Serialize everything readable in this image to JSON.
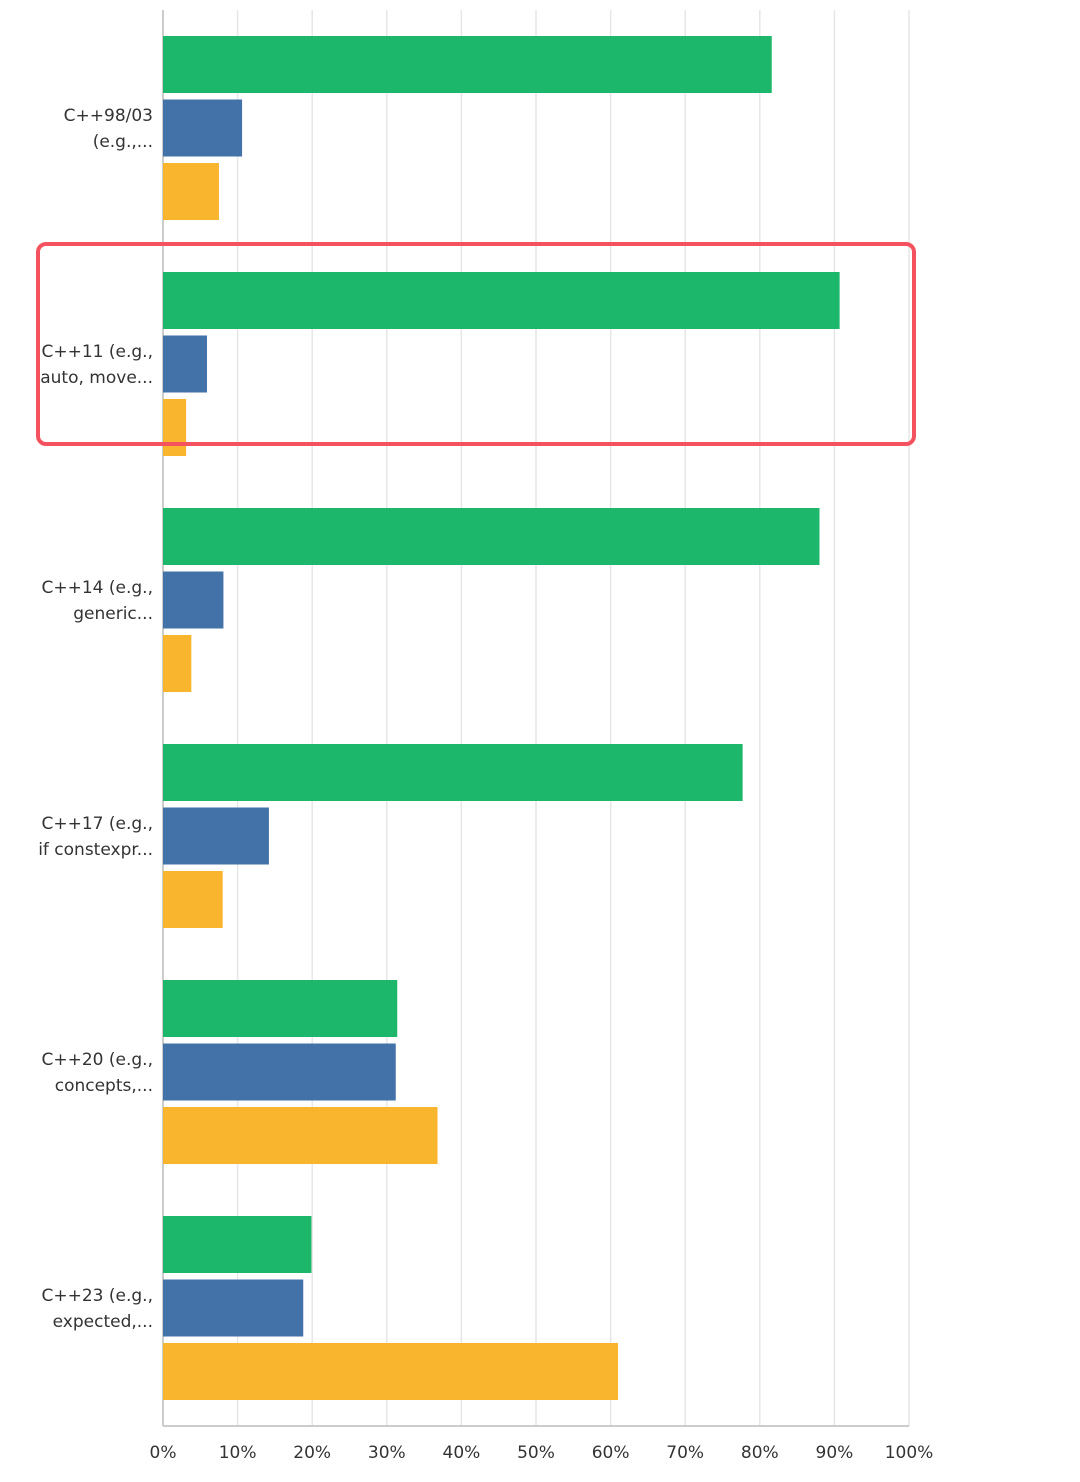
{
  "chart_data": {
    "type": "bar",
    "orientation": "horizontal",
    "categories": [
      [
        "C++98/03",
        "(e.g.,..."
      ],
      [
        "C++11 (e.g.,",
        "auto, move..."
      ],
      [
        "C++14 (e.g.,",
        "generic..."
      ],
      [
        "C++17 (e.g.,",
        "if constexpr..."
      ],
      [
        "C++20 (e.g.,",
        "concepts,..."
      ],
      [
        "C++23 (e.g.,",
        "expected,..."
      ]
    ],
    "series": [
      {
        "color": "#1db76b",
        "values": [
          81.6,
          90.7,
          88.0,
          77.7,
          31.4,
          19.9
        ]
      },
      {
        "color": "#4372a9",
        "values": [
          10.6,
          5.9,
          8.1,
          14.2,
          31.2,
          18.8
        ]
      },
      {
        "color": "#f8b52d",
        "values": [
          7.5,
          3.1,
          3.8,
          8.0,
          36.8,
          61.0
        ]
      }
    ],
    "xlim": [
      0,
      100
    ],
    "xticks": [
      "0%",
      "10%",
      "20%",
      "30%",
      "40%",
      "50%",
      "60%",
      "70%",
      "80%",
      "90%",
      "100%"
    ],
    "grid": true,
    "highlight": {
      "category_index": 1,
      "color": "#f4525f"
    }
  }
}
